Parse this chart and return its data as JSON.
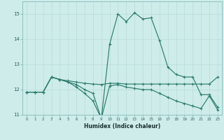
{
  "xlabel": "Humidex (Indice chaleur)",
  "x_values": [
    0,
    1,
    2,
    3,
    4,
    5,
    6,
    7,
    8,
    9,
    10,
    11,
    12,
    13,
    14,
    15,
    16,
    17,
    18,
    19,
    20,
    21,
    22,
    23
  ],
  "line1": [
    11.9,
    11.9,
    11.9,
    12.5,
    12.4,
    12.3,
    12.1,
    11.85,
    11.55,
    10.85,
    13.8,
    15.0,
    14.7,
    15.05,
    14.8,
    14.85,
    13.95,
    12.9,
    12.6,
    12.5,
    12.5,
    11.8,
    11.8,
    11.3
  ],
  "line2": [
    11.9,
    11.9,
    11.9,
    12.5,
    12.4,
    12.3,
    12.2,
    12.0,
    11.85,
    10.85,
    12.15,
    12.2,
    12.1,
    12.05,
    12.0,
    12.0,
    11.85,
    11.7,
    11.55,
    11.45,
    11.35,
    11.25,
    11.75,
    11.2
  ],
  "line3": [
    11.9,
    11.9,
    11.9,
    12.5,
    12.4,
    12.35,
    12.3,
    12.25,
    12.22,
    12.2,
    12.25,
    12.25,
    12.22,
    12.22,
    12.22,
    12.22,
    12.22,
    12.22,
    12.22,
    12.22,
    12.22,
    12.22,
    12.22,
    12.5
  ],
  "line_color": "#2e7d6e",
  "bg_color": "#cdecea",
  "grid_color": "#b8dbd9",
  "ylim": [
    11.0,
    15.5
  ],
  "xlim": [
    -0.5,
    23.5
  ],
  "yticks": [
    11,
    12,
    13,
    14,
    15
  ],
  "xticks": [
    0,
    1,
    2,
    3,
    4,
    5,
    6,
    7,
    8,
    9,
    10,
    11,
    12,
    13,
    14,
    15,
    16,
    17,
    18,
    19,
    20,
    21,
    22,
    23
  ]
}
